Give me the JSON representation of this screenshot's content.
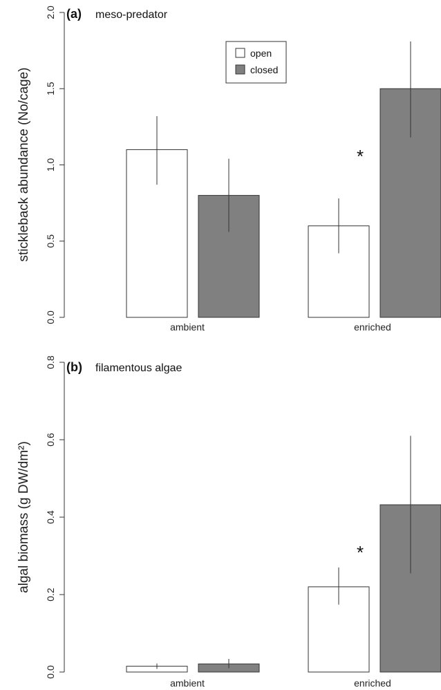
{
  "chart_data": [
    {
      "type": "bar",
      "panel_letter": "(a)",
      "panel_name": "meso-predator",
      "ylabel": "stickleback abundance (No/cage)",
      "ylim": [
        0,
        2.0
      ],
      "yticks": [
        "0.0",
        "0.5",
        "1.0",
        "1.5",
        "2.0"
      ],
      "categories": [
        "ambient",
        "enriched"
      ],
      "series": [
        {
          "name": "open",
          "color": "#ffffff",
          "values": [
            1.1,
            0.6
          ],
          "err_low": [
            0.87,
            0.42
          ],
          "err_high": [
            1.32,
            0.78
          ]
        },
        {
          "name": "closed",
          "color": "#808080",
          "values": [
            0.8,
            1.5
          ],
          "err_low": [
            0.56,
            1.18
          ],
          "err_high": [
            1.04,
            1.81
          ]
        }
      ],
      "legend": {
        "position": "top-center",
        "entries": [
          "open",
          "closed"
        ]
      },
      "annotations": [
        {
          "text": "*",
          "category": "enriched",
          "y": 1.08
        }
      ]
    },
    {
      "type": "bar",
      "panel_letter": "(b)",
      "panel_name": "filamentous algae",
      "ylabel": "algal biomass (g DW/dm²)",
      "ylim": [
        0,
        0.8
      ],
      "yticks": [
        "0.0",
        "0.2",
        "0.4",
        "0.6",
        "0.8"
      ],
      "categories": [
        "ambient",
        "enriched"
      ],
      "series": [
        {
          "name": "open",
          "color": "#ffffff",
          "values": [
            0.015,
            0.22
          ],
          "err_low": [
            0.008,
            0.174
          ],
          "err_high": [
            0.022,
            0.27
          ]
        },
        {
          "name": "closed",
          "color": "#808080",
          "values": [
            0.021,
            0.432
          ],
          "err_low": [
            0.01,
            0.255
          ],
          "err_high": [
            0.034,
            0.61
          ]
        }
      ],
      "annotations": [
        {
          "text": "*",
          "category": "enriched",
          "y": 0.318
        }
      ]
    }
  ]
}
